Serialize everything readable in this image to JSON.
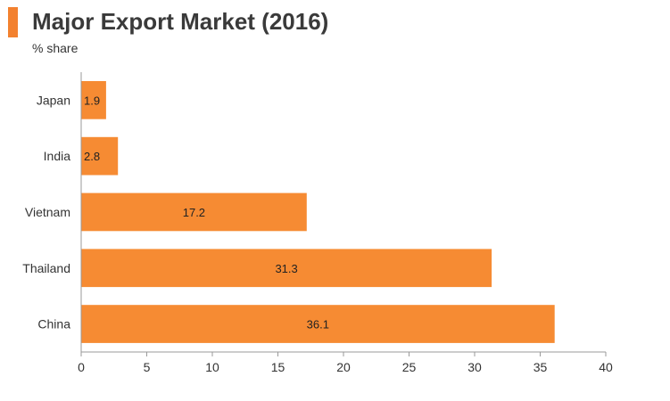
{
  "header": {
    "title": "Major Export Market (2016)",
    "subtitle": "% share"
  },
  "colors": {
    "accent": "#F3812F",
    "bar": "#F68B33",
    "axis": "#9a9a9a",
    "text": "#333333"
  },
  "chart_data": {
    "type": "bar",
    "orientation": "horizontal",
    "title": "Major Export Market (2016)",
    "subtitle": "% share",
    "categories": [
      "Japan",
      "India",
      "Vietnam",
      "Thailand",
      "China"
    ],
    "values": [
      1.9,
      2.8,
      17.2,
      31.3,
      36.1
    ],
    "data_labels": [
      "1.9",
      "2.8",
      "17.2",
      "31.3",
      "36.1"
    ],
    "xlim": [
      0,
      40
    ],
    "xticks": [
      0,
      5,
      10,
      15,
      20,
      25,
      30,
      35,
      40
    ],
    "xlabel": "",
    "ylabel": "",
    "grid": false,
    "legend": "none"
  }
}
